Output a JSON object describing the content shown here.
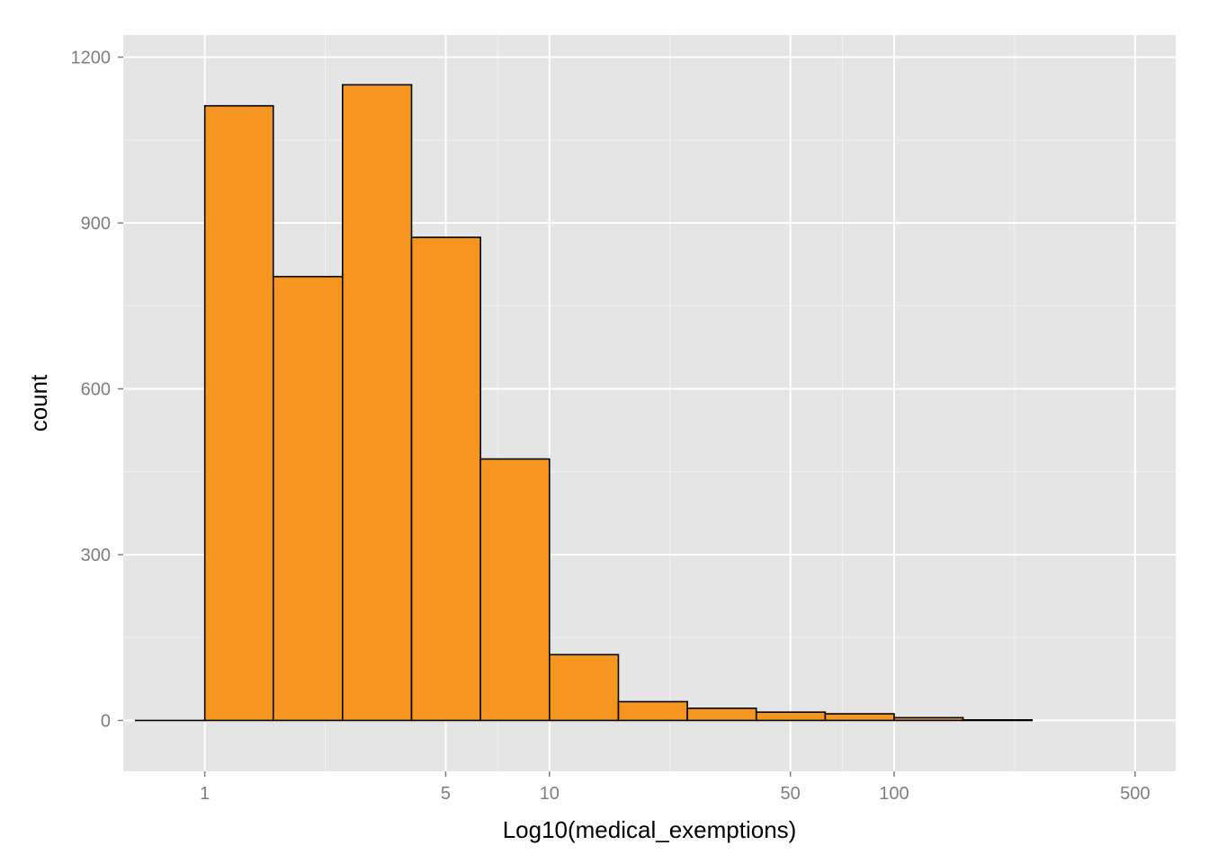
{
  "chart_data": {
    "type": "bar",
    "xlabel": "Log10(medical_exemptions)",
    "ylabel": "count",
    "x_scale": "log10",
    "xlim": [
      0.58,
      656
    ],
    "ylim": [
      -92,
      1240
    ],
    "x_ticks": [
      1,
      5,
      10,
      50,
      100,
      500
    ],
    "x_tick_labels": [
      "1",
      "5",
      "10",
      "50",
      "100",
      "500"
    ],
    "y_ticks": [
      0,
      300,
      600,
      900,
      1200
    ],
    "y_tick_labels": [
      "0",
      "300",
      "600",
      "900",
      "1200"
    ],
    "grid": true,
    "bin_width_log10": 0.2,
    "bins": [
      {
        "x_start": 0.63,
        "x_end": 1.0,
        "count": 0
      },
      {
        "x_start": 1.0,
        "x_end": 1.58,
        "count": 1112
      },
      {
        "x_start": 1.58,
        "x_end": 2.51,
        "count": 803
      },
      {
        "x_start": 2.51,
        "x_end": 3.98,
        "count": 1150
      },
      {
        "x_start": 3.98,
        "x_end": 6.31,
        "count": 874
      },
      {
        "x_start": 6.31,
        "x_end": 10.0,
        "count": 473
      },
      {
        "x_start": 10.0,
        "x_end": 15.85,
        "count": 119
      },
      {
        "x_start": 15.85,
        "x_end": 25.12,
        "count": 34
      },
      {
        "x_start": 25.12,
        "x_end": 39.81,
        "count": 22
      },
      {
        "x_start": 39.81,
        "x_end": 63.1,
        "count": 15
      },
      {
        "x_start": 63.1,
        "x_end": 100.0,
        "count": 12
      },
      {
        "x_start": 100.0,
        "x_end": 158.5,
        "count": 5
      },
      {
        "x_start": 158.5,
        "x_end": 251.2,
        "count": 1
      }
    ],
    "colors": {
      "panel_background": "#e5e5e5",
      "major_grid": "#ffffff",
      "minor_grid": "#f2f2f2",
      "bar_fill": "#f69520",
      "bar_stroke": "#000000",
      "tick_label": "#7f7f7f"
    }
  }
}
